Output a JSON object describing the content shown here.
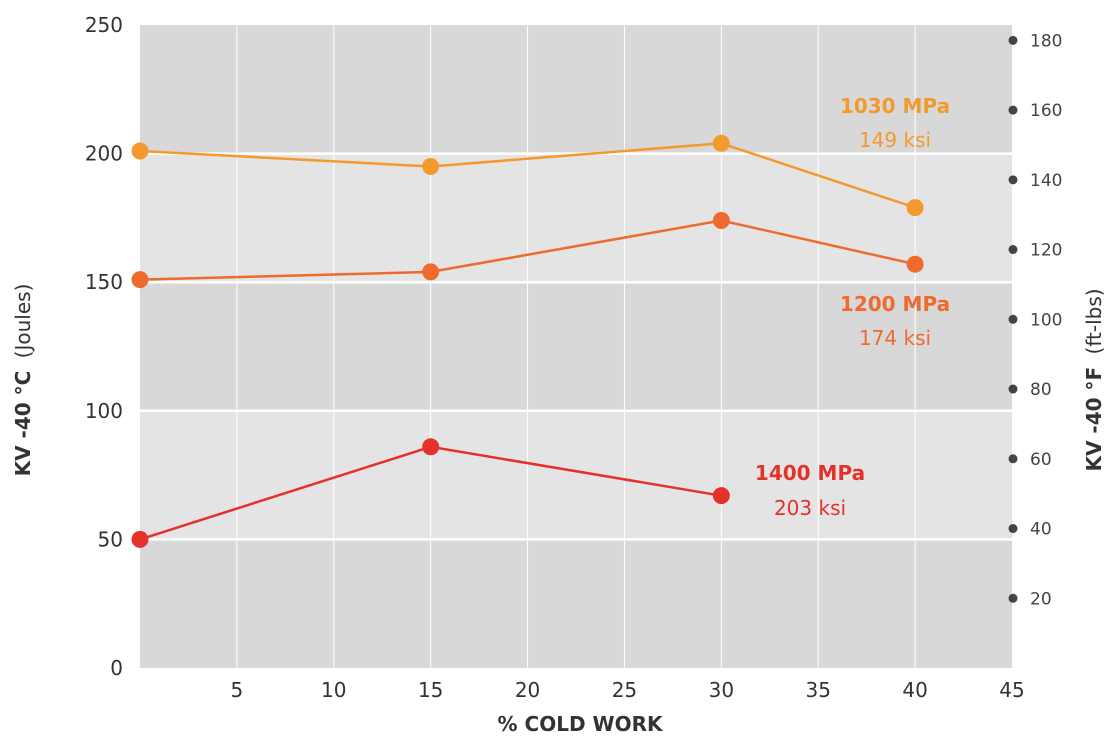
{
  "chart_data": {
    "type": "line",
    "xlabel": "% COLD WORK",
    "ylabel_bold": "KV -40 °C",
    "ylabel_unit": "(Joules)",
    "y2label_bold": "KV -40 °F",
    "y2label_unit": "(ft-lbs)",
    "xlim": [
      0,
      45
    ],
    "ylim": [
      0,
      250
    ],
    "y2lim": [
      0,
      184.4
    ],
    "x_ticks": [
      "5",
      "10",
      "15",
      "20",
      "25",
      "30",
      "35",
      "40",
      "45"
    ],
    "y_ticks": [
      "0",
      "50",
      "100",
      "150",
      "200",
      "250"
    ],
    "y2_ticks": [
      "20",
      "40",
      "60",
      "80",
      "100",
      "120",
      "140",
      "160",
      "180"
    ],
    "grid": true,
    "background_bands": "alternating grey bands every 50 J",
    "series": [
      {
        "name": "1030 MPa",
        "sub_label": "149 ksi",
        "color": "#f39a2e",
        "points": [
          [
            0,
            201
          ],
          [
            15,
            195
          ],
          [
            30,
            204
          ],
          [
            40,
            179
          ]
        ]
      },
      {
        "name": "1200 MPa",
        "sub_label": "174 ksi",
        "color": "#ee6a2e",
        "points": [
          [
            0,
            151
          ],
          [
            15,
            154
          ],
          [
            30,
            174
          ],
          [
            40,
            157
          ]
        ]
      },
      {
        "name": "1400 MPa",
        "sub_label": "203 ksi",
        "color": "#e4322b",
        "points": [
          [
            0,
            50
          ],
          [
            15,
            86
          ],
          [
            30,
            67
          ]
        ]
      }
    ]
  }
}
